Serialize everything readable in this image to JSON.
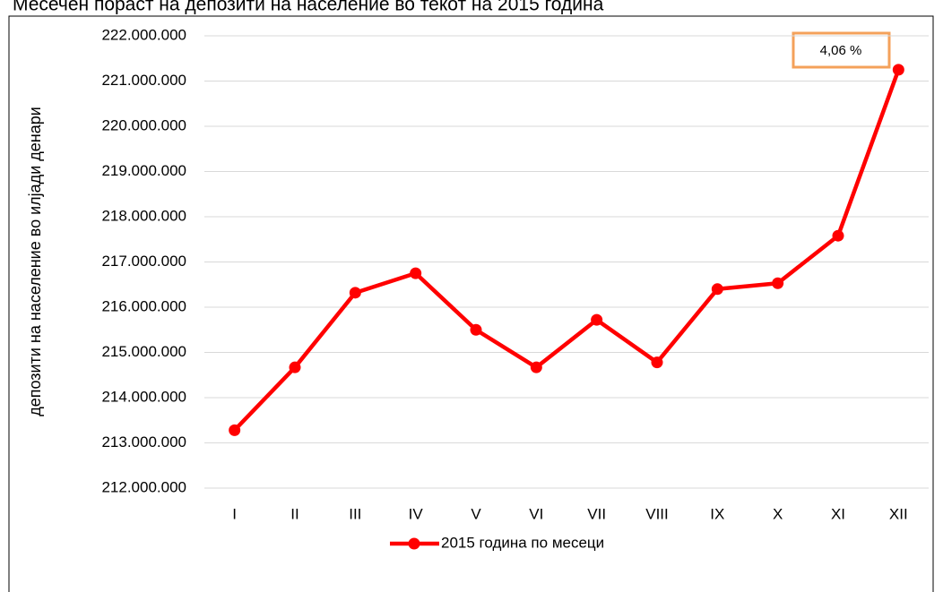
{
  "chart_data": {
    "type": "line",
    "title": "Месечен пораст на депозити на население во текот на 2015 година",
    "y_label": "депозити на население во илјади денари",
    "annotation": "4,06 %",
    "categories": [
      "I",
      "II",
      "III",
      "IV",
      "V",
      "VI",
      "VII",
      "VIII",
      "IX",
      "X",
      "XI",
      "XII"
    ],
    "series": [
      {
        "name": "2015 година по месеци",
        "color": "#ff0000",
        "values": [
          213280000,
          214670000,
          216320000,
          216750000,
          215500000,
          214670000,
          215720000,
          214780000,
          216400000,
          216530000,
          217580000,
          221250000
        ]
      }
    ],
    "ylim": [
      212000000,
      222000000
    ],
    "yticks": [
      {
        "value": 212000000,
        "label": "212.000.000"
      },
      {
        "value": 213000000,
        "label": "213.000.000"
      },
      {
        "value": 214000000,
        "label": "214.000.000"
      },
      {
        "value": 215000000,
        "label": "215.000.000"
      },
      {
        "value": 216000000,
        "label": "216.000.000"
      },
      {
        "value": 217000000,
        "label": "217.000.000"
      },
      {
        "value": 218000000,
        "label": "218.000.000"
      },
      {
        "value": 219000000,
        "label": "219.000.000"
      },
      {
        "value": 220000000,
        "label": "220.000.000"
      },
      {
        "value": 221000000,
        "label": "221.000.000"
      },
      {
        "value": 222000000,
        "label": "222.000.000"
      }
    ],
    "grid": true
  }
}
